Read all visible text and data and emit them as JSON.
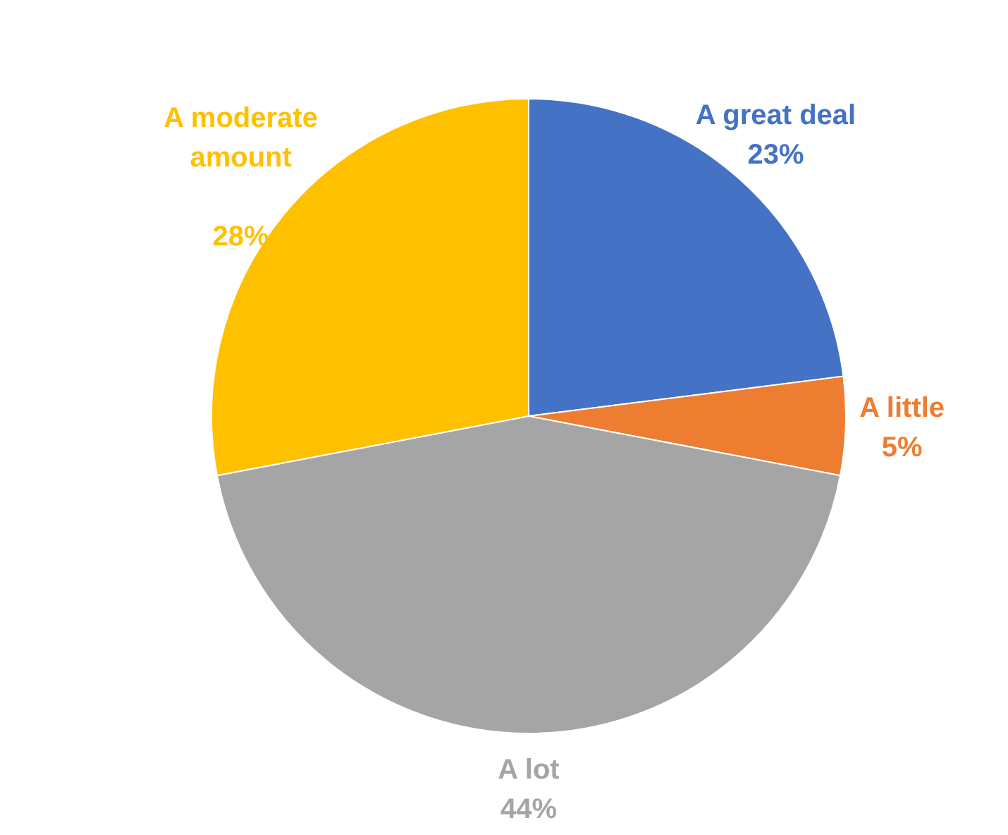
{
  "chart_data": {
    "type": "pie",
    "categories": [
      "A great deal",
      "A little",
      "A lot",
      "A moderate amount"
    ],
    "values": [
      23,
      5,
      44,
      28
    ],
    "colors": [
      "#4472c4",
      "#ed7d31",
      "#a5a5a5",
      "#ffc000"
    ],
    "value_labels": [
      "23%",
      "5%",
      "44%",
      "28%"
    ],
    "legend": false
  }
}
